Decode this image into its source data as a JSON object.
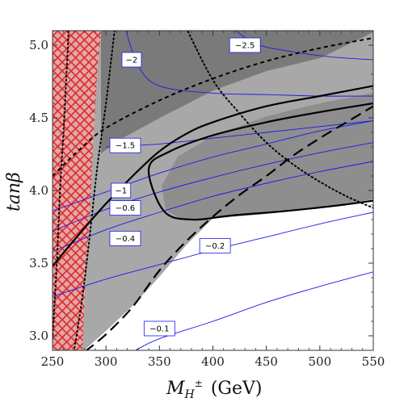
{
  "chart_data": {
    "type": "contour",
    "title": "",
    "xlabel": "M",
    "xlabel_sub": "H",
    "xlabel_sup": "±",
    "xlabel_unit": "(GeV)",
    "ylabel": "tanβ",
    "xlim": [
      250,
      550
    ],
    "ylim": [
      2.9,
      5.1
    ],
    "x_ticks": [
      "250",
      "300",
      "350",
      "400",
      "450",
      "500",
      "550"
    ],
    "y_ticks": [
      "3.0",
      "3.5",
      "4.0",
      "4.5",
      "5.0"
    ],
    "colors": {
      "region_light": "#a8a8a8",
      "region_dark": "#7a7a7a",
      "hatch": "#e02020",
      "hatch_fill": "#e8a6a6",
      "blue_contour": "#1a1aee",
      "black_contour": "#000000"
    },
    "contour_labels": [
      {
        "text": "−2.5",
        "x": 430,
        "y": 5.0
      },
      {
        "text": "−2",
        "x": 324,
        "y": 4.9
      },
      {
        "text": "−1.5",
        "x": 318,
        "y": 4.31
      },
      {
        "text": "−1",
        "x": 314,
        "y": 4.0
      },
      {
        "text": "−0.6",
        "x": 318,
        "y": 3.88
      },
      {
        "text": "−0.4",
        "x": 318,
        "y": 3.67
      },
      {
        "text": "−0.2",
        "x": 402,
        "y": 3.62
      },
      {
        "text": "−0.1",
        "x": 350,
        "y": 3.05
      }
    ],
    "series": [
      {
        "kind": "blue",
        "points": [
          [
            250,
            3.27
          ],
          [
            300,
            3.39
          ],
          [
            350,
            3.49
          ],
          [
            400,
            3.59
          ],
          [
            450,
            3.68
          ],
          [
            500,
            3.77
          ],
          [
            550,
            3.85
          ]
        ]
      },
      {
        "kind": "blue",
        "points": [
          [
            250,
            3.58
          ],
          [
            300,
            3.73
          ],
          [
            350,
            3.85
          ],
          [
            400,
            3.96
          ],
          [
            450,
            4.05
          ],
          [
            500,
            4.13
          ],
          [
            550,
            4.2
          ]
        ]
      },
      {
        "kind": "blue",
        "points": [
          [
            250,
            3.72
          ],
          [
            300,
            3.87
          ],
          [
            350,
            3.99
          ],
          [
            400,
            4.09
          ],
          [
            450,
            4.18
          ],
          [
            500,
            4.26
          ],
          [
            550,
            4.33
          ]
        ]
      },
      {
        "kind": "blue",
        "points": [
          [
            250,
            3.86
          ],
          [
            300,
            3.99
          ],
          [
            350,
            4.12
          ],
          [
            400,
            4.23
          ],
          [
            450,
            4.32
          ],
          [
            500,
            4.41
          ],
          [
            550,
            4.48
          ]
        ]
      },
      {
        "kind": "blue",
        "points": [
          [
            300,
            4.3
          ],
          [
            350,
            4.32
          ],
          [
            400,
            4.36
          ],
          [
            450,
            4.4
          ],
          [
            500,
            4.44
          ],
          [
            550,
            4.48
          ]
        ]
      },
      {
        "kind": "blue",
        "points": [
          [
            318,
            5.12
          ],
          [
            330,
            4.86
          ],
          [
            350,
            4.72
          ],
          [
            400,
            4.67
          ],
          [
            450,
            4.66
          ],
          [
            500,
            4.65
          ],
          [
            550,
            4.65
          ]
        ]
      },
      {
        "kind": "blue",
        "points": [
          [
            418,
            5.12
          ],
          [
            440,
            5.01
          ],
          [
            470,
            4.96
          ],
          [
            510,
            4.92
          ],
          [
            550,
            4.9
          ]
        ]
      },
      {
        "kind": "blue",
        "points": [
          [
            325,
            2.89
          ],
          [
            350,
            2.98
          ],
          [
            400,
            3.1
          ],
          [
            450,
            3.23
          ],
          [
            500,
            3.34
          ],
          [
            550,
            3.44
          ]
        ]
      },
      {
        "kind": "black-solid",
        "points": [
          [
            250,
            3.48
          ],
          [
            275,
            3.7
          ],
          [
            300,
            3.91
          ],
          [
            325,
            4.1
          ],
          [
            350,
            4.27
          ],
          [
            375,
            4.39
          ],
          [
            400,
            4.47
          ],
          [
            450,
            4.58
          ],
          [
            500,
            4.65
          ],
          [
            550,
            4.72
          ]
        ]
      },
      {
        "kind": "black-solid",
        "points": [
          [
            550,
            4.6
          ],
          [
            500,
            4.54
          ],
          [
            450,
            4.47
          ],
          [
            400,
            4.38
          ],
          [
            360,
            4.27
          ],
          [
            340,
            4.15
          ],
          [
            354,
            3.86
          ],
          [
            380,
            3.8
          ],
          [
            420,
            3.83
          ],
          [
            470,
            3.86
          ],
          [
            520,
            3.9
          ],
          [
            550,
            3.93
          ]
        ]
      },
      {
        "kind": "black-dashed",
        "points": [
          [
            280,
            2.89
          ],
          [
            300,
            3.01
          ],
          [
            325,
            3.2
          ],
          [
            350,
            3.45
          ],
          [
            375,
            3.65
          ],
          [
            400,
            3.82
          ],
          [
            425,
            3.97
          ],
          [
            450,
            4.1
          ],
          [
            475,
            4.24
          ],
          [
            500,
            4.36
          ],
          [
            525,
            4.47
          ],
          [
            550,
            4.58
          ]
        ]
      },
      {
        "kind": "black-dashed-short",
        "points": [
          [
            250,
            4.1
          ],
          [
            275,
            4.28
          ],
          [
            300,
            4.43
          ],
          [
            350,
            4.62
          ],
          [
            400,
            4.77
          ],
          [
            450,
            4.89
          ],
          [
            500,
            4.98
          ],
          [
            550,
            5.05
          ]
        ]
      },
      {
        "kind": "black-dotted",
        "points": [
          [
            270,
            2.89
          ],
          [
            278,
            3.27
          ],
          [
            285,
            3.7
          ],
          [
            292,
            4.17
          ],
          [
            300,
            4.6
          ],
          [
            308,
            5.1
          ]
        ]
      },
      {
        "kind": "black-dotted",
        "points": [
          [
            250,
            2.98
          ],
          [
            254,
            3.5
          ],
          [
            257,
            4.0
          ],
          [
            261,
            4.5
          ],
          [
            265,
            5.1
          ]
        ]
      },
      {
        "kind": "black-dotted",
        "points": [
          [
            375,
            5.12
          ],
          [
            400,
            4.76
          ],
          [
            425,
            4.53
          ],
          [
            450,
            4.33
          ],
          [
            475,
            4.18
          ],
          [
            500,
            4.06
          ],
          [
            525,
            3.96
          ],
          [
            550,
            3.88
          ]
        ]
      }
    ]
  }
}
